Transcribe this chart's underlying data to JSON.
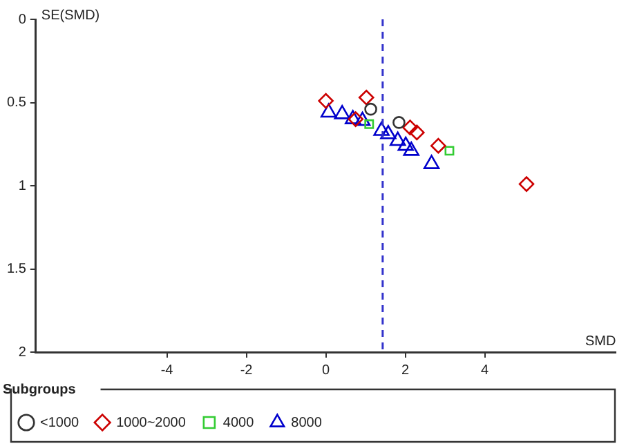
{
  "chart_data": {
    "type": "scatter",
    "xlabel": "SMD",
    "ylabel": "SE(SMD)",
    "legend_title": "Subgroups",
    "legend": "bottom",
    "grid": false,
    "xlim": [
      -7.3,
      7.3
    ],
    "xticks": [
      -4,
      -2,
      0,
      2,
      4
    ],
    "ylim": [
      2,
      0
    ],
    "yticks": [
      0,
      0.5,
      1,
      1.5,
      2
    ],
    "ref_lines": [
      {
        "axis": "x",
        "value": 1.43,
        "color": "#3333cc",
        "line_style": "dashed"
      }
    ],
    "series": [
      {
        "name": "<1000",
        "color": "#333333",
        "marker": "circle",
        "x": [
          1.13,
          1.84
        ],
        "values": [
          0.54,
          0.62
        ]
      },
      {
        "name": "1000~2000",
        "color": "#cc0000",
        "marker": "diamond",
        "x": [
          0,
          1.02,
          0.75,
          2.12,
          2.29,
          2.83,
          5.05
        ],
        "values": [
          0.49,
          0.47,
          0.6,
          0.65,
          0.68,
          0.76,
          0.99
        ]
      },
      {
        "name": "4000",
        "color": "#33cc33",
        "marker": "square",
        "x": [
          1.09,
          3.11
        ],
        "values": [
          0.63,
          0.79
        ]
      },
      {
        "name": "8000",
        "color": "#0000cc",
        "marker": "triangle",
        "x": [
          0.07,
          0.41,
          0.68,
          0.92,
          1.4,
          1.57,
          1.81,
          2.01,
          2.15,
          2.66
        ],
        "values": [
          0.56,
          0.57,
          0.6,
          0.61,
          0.67,
          0.69,
          0.73,
          0.76,
          0.79,
          0.87
        ]
      }
    ]
  }
}
